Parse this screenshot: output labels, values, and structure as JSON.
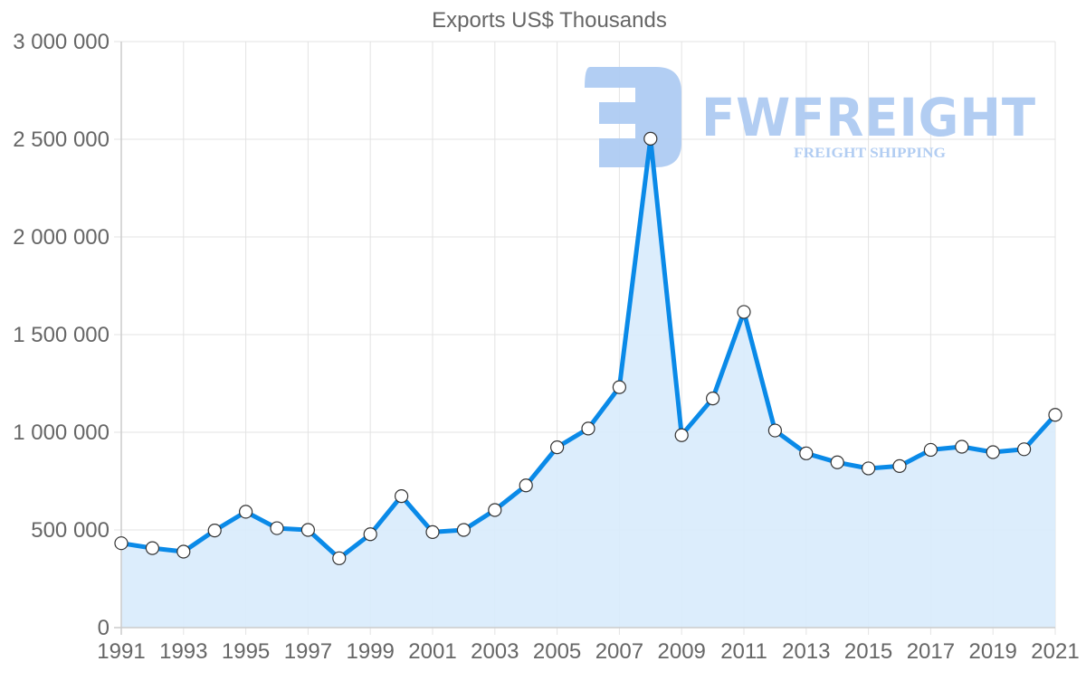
{
  "chart_data": {
    "type": "line",
    "title": "Exports US$ Thousands",
    "xlabel": "",
    "ylabel": "",
    "x": [
      1991,
      1992,
      1993,
      1994,
      1995,
      1996,
      1997,
      1998,
      1999,
      2000,
      2001,
      2002,
      2003,
      2004,
      2005,
      2006,
      2007,
      2008,
      2009,
      2010,
      2011,
      2012,
      2013,
      2014,
      2015,
      2016,
      2017,
      2018,
      2019,
      2020,
      2021
    ],
    "series": [
      {
        "name": "Exports US$ Thousands",
        "values": [
          432000,
          407000,
          389000,
          497000,
          593000,
          509000,
          500000,
          355000,
          478000,
          673000,
          489000,
          500000,
          602000,
          728000,
          923000,
          1019000,
          1231000,
          2503000,
          985000,
          1173000,
          1616000,
          1009000,
          892000,
          846000,
          815000,
          827000,
          910000,
          926000,
          898000,
          913000,
          1089000
        ],
        "color": "#0a8ae8",
        "fill": "#d8ebfc",
        "marker": "circle-white"
      }
    ],
    "ylim": [
      0,
      3000000
    ],
    "yticks": [
      0,
      500000,
      1000000,
      1500000,
      2000000,
      2500000,
      3000000
    ],
    "ytick_labels": [
      "0",
      "500 000",
      "1 000 000",
      "1 500 000",
      "2 000 000",
      "2 500 000",
      "3 000 000"
    ],
    "xtick_labels": [
      "1991",
      "1993",
      "1995",
      "1997",
      "1999",
      "2001",
      "2003",
      "2005",
      "2007",
      "2009",
      "2011",
      "2013",
      "2015",
      "2017",
      "2019",
      "2021"
    ],
    "grid": true,
    "legend": "none"
  },
  "watermark": {
    "brand": "FWFREIGHT",
    "tagline": "FREIGHT SHIPPING",
    "color": "#aecbf2"
  }
}
